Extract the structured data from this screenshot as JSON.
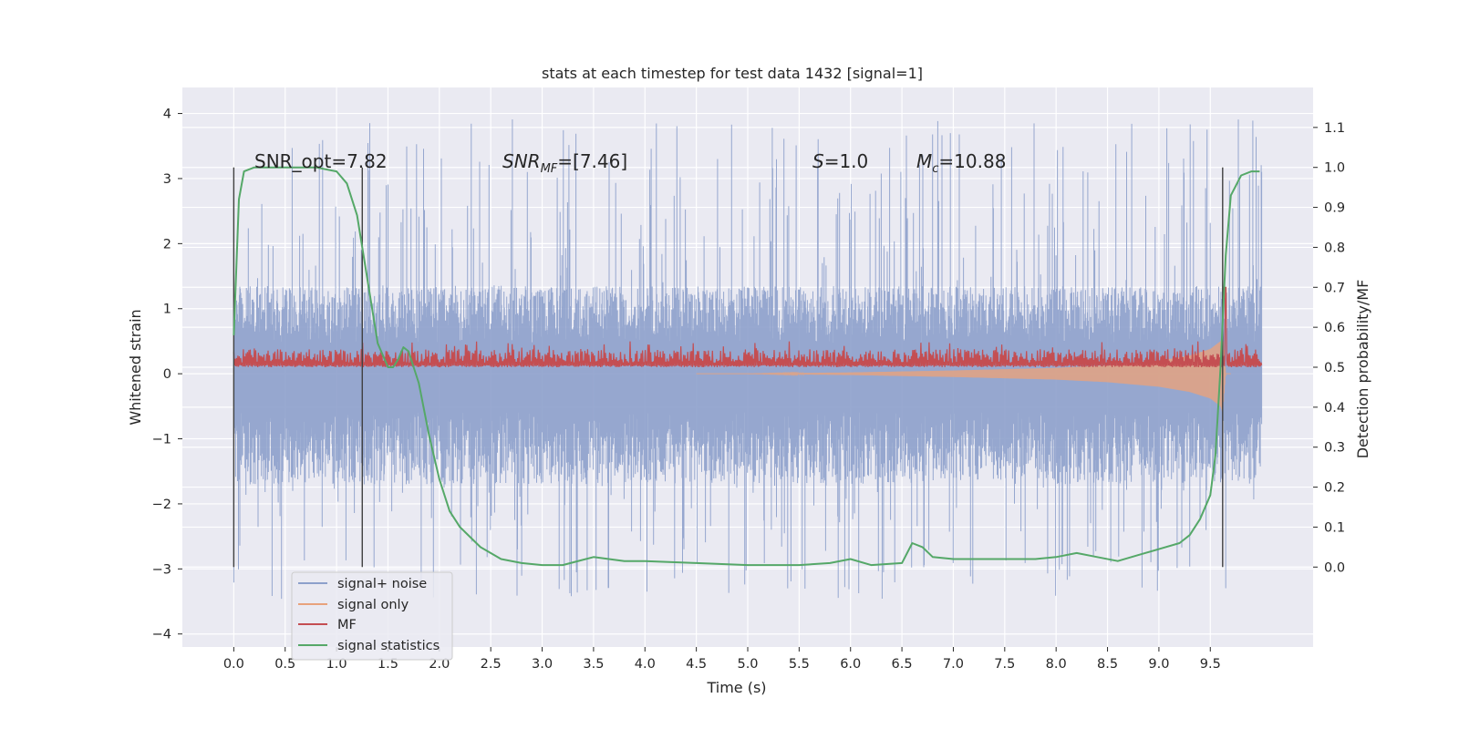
{
  "chart_data": {
    "type": "line",
    "title": "stats at each timestep for test data 1432 [signal=1]",
    "xlabel": "Time (s)",
    "ylabel": "Whitened strain",
    "ylabel_right": "Detection probability/MF",
    "xlim": [
      -0.5,
      10.5
    ],
    "ylim": [
      -4.2,
      4.4
    ],
    "ylim_right": [
      -0.2,
      1.2
    ],
    "grid": true,
    "x_ticks": [
      "0.0",
      "0.5",
      "1.0",
      "1.5",
      "2.0",
      "2.5",
      "3.0",
      "3.5",
      "4.0",
      "4.5",
      "5.0",
      "5.5",
      "6.0",
      "6.5",
      "7.0",
      "7.5",
      "8.0",
      "8.5",
      "9.0",
      "9.5"
    ],
    "y_ticks": [
      "4",
      "3",
      "2",
      "1",
      "0",
      "−1",
      "−2",
      "−3",
      "−4"
    ],
    "y_ticks_right": [
      "1.1",
      "1.0",
      "0.9",
      "0.8",
      "0.7",
      "0.6",
      "0.5",
      "0.4",
      "0.3",
      "0.2",
      "0.1",
      "0.0"
    ],
    "annotations": {
      "snr_opt": "SNR_opt=7.82",
      "snr_mf_prefix": "SNR",
      "snr_mf_sub": "MF",
      "snr_mf_value": "=[7.46]",
      "s_prefix": "S",
      "s_value": "=1.0",
      "mc_prefix": "M",
      "mc_sub": "c",
      "mc_value": "=10.88"
    },
    "legend": {
      "placement": "lower-left",
      "entries": [
        "signal+ noise",
        "signal only",
        "MF",
        "signal statistics"
      ]
    },
    "colors": {
      "signal_noise": "#8da0cb",
      "signal_only": "#e8a27c",
      "mf": "#c44e52",
      "statistics": "#55a868",
      "plot_bg": "#eaeaf2"
    },
    "vertical_markers_x": [
      0.0,
      1.25,
      9.62
    ],
    "series": [
      {
        "name": "signal statistics",
        "axis": "right",
        "x": [
          0.0,
          0.05,
          0.1,
          0.2,
          0.3,
          0.5,
          0.8,
          1.0,
          1.1,
          1.2,
          1.3,
          1.4,
          1.5,
          1.55,
          1.6,
          1.65,
          1.7,
          1.8,
          1.9,
          2.0,
          2.1,
          2.2,
          2.4,
          2.6,
          2.8,
          3.0,
          3.2,
          3.5,
          3.8,
          4.0,
          4.5,
          5.0,
          5.5,
          5.8,
          6.0,
          6.2,
          6.5,
          6.6,
          6.7,
          6.8,
          7.0,
          7.5,
          7.8,
          8.0,
          8.2,
          8.4,
          8.6,
          8.8,
          9.0,
          9.2,
          9.3,
          9.4,
          9.5,
          9.55,
          9.6,
          9.65,
          9.7,
          9.8,
          9.9,
          9.98
        ],
        "y": [
          0.58,
          0.92,
          0.99,
          1.0,
          1.0,
          1.0,
          1.0,
          0.99,
          0.96,
          0.88,
          0.72,
          0.56,
          0.5,
          0.5,
          0.52,
          0.55,
          0.54,
          0.46,
          0.33,
          0.22,
          0.14,
          0.1,
          0.05,
          0.02,
          0.01,
          0.005,
          0.005,
          0.025,
          0.015,
          0.015,
          0.01,
          0.005,
          0.005,
          0.01,
          0.02,
          0.005,
          0.01,
          0.06,
          0.05,
          0.025,
          0.02,
          0.02,
          0.02,
          0.025,
          0.035,
          0.025,
          0.015,
          0.03,
          0.045,
          0.06,
          0.08,
          0.12,
          0.18,
          0.28,
          0.5,
          0.78,
          0.93,
          0.98,
          0.99,
          0.99
        ]
      },
      {
        "name": "signal only",
        "axis": "left",
        "x": [
          0.0,
          5.0,
          6.0,
          7.0,
          8.0,
          8.5,
          9.0,
          9.3,
          9.5,
          9.6,
          9.62,
          9.65,
          10.0
        ],
        "amplitude": [
          0.0,
          0.0,
          0.02,
          0.05,
          0.09,
          0.13,
          0.2,
          0.28,
          0.38,
          0.5,
          0.6,
          0.0,
          0.0
        ]
      },
      {
        "name": "MF",
        "axis": "right",
        "x_range": [
          0.0,
          10.0
        ],
        "baseline": 0.5,
        "band": [
          0.5,
          0.545
        ],
        "peak": {
          "x": 9.65,
          "y": 0.7
        }
      },
      {
        "name": "signal+ noise",
        "axis": "left",
        "x_range": [
          0.0,
          10.0
        ],
        "typical_upper": 1.35,
        "typical_lower": -1.7,
        "max": 4.05,
        "min": -3.8
      }
    ]
  }
}
